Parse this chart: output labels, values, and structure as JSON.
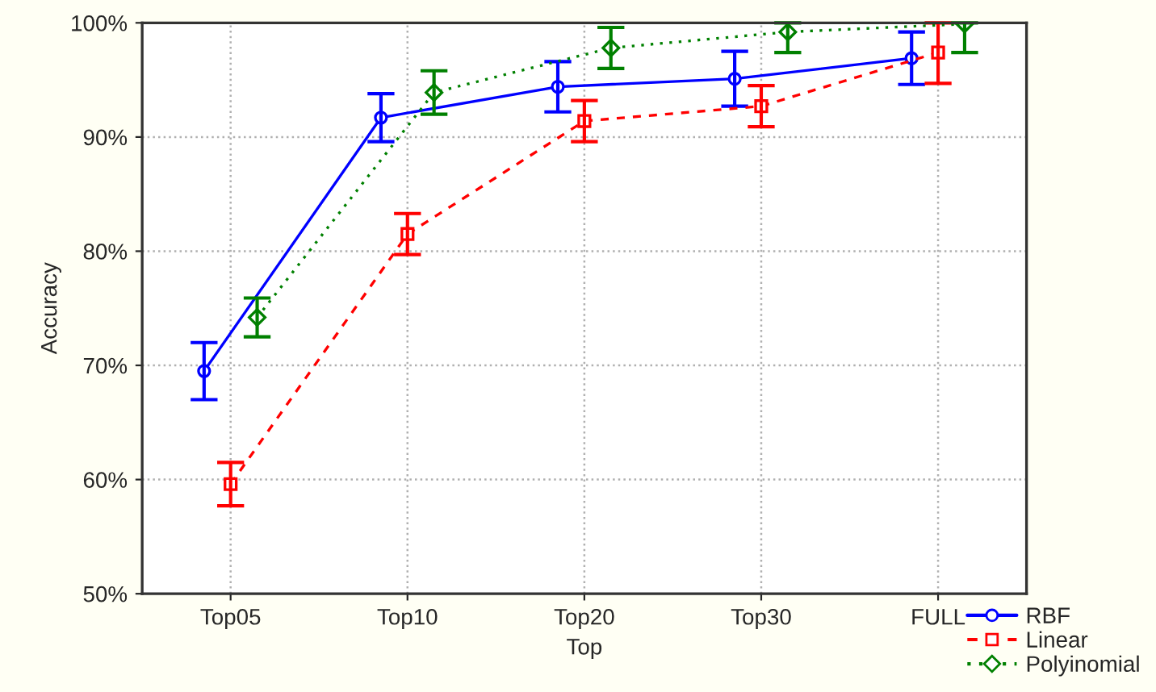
{
  "chart_data": {
    "type": "line",
    "xlabel": "Top",
    "ylabel": "Accuracy",
    "categories": [
      "Top05",
      "Top10",
      "Top20",
      "Top30",
      "FULL"
    ],
    "ylim": [
      50,
      100
    ],
    "yticks": [
      {
        "value": 50,
        "label": "50%"
      },
      {
        "value": 60,
        "label": "60%"
      },
      {
        "value": 70,
        "label": "70%"
      },
      {
        "value": 80,
        "label": "80%"
      },
      {
        "value": 90,
        "label": "90%"
      },
      {
        "value": 100,
        "label": "100%"
      }
    ],
    "grid": true,
    "legend": "bottom right",
    "series": [
      {
        "name": "RBF",
        "color": "#0000ff",
        "marker": "circle",
        "line_style": "solid",
        "values": [
          69.5,
          91.7,
          94.4,
          95.1,
          96.9
        ],
        "errors": [
          2.5,
          2.1,
          2.2,
          2.4,
          2.3
        ]
      },
      {
        "name": "Linear",
        "color": "#ff0000",
        "marker": "square",
        "line_style": "dashed",
        "values": [
          59.6,
          81.5,
          91.4,
          92.7,
          97.4
        ],
        "errors": [
          1.9,
          1.8,
          1.8,
          1.8,
          [
            94.7,
            100
          ]
        ]
      },
      {
        "name": "Polyinomial",
        "color": "#008000",
        "marker": "diamond",
        "line_style": "dotted",
        "values": [
          74.2,
          93.9,
          97.8,
          99.2,
          99.9
        ],
        "errors": [
          1.7,
          1.9,
          1.8,
          [
            97.4,
            100
          ],
          [
            97.4,
            100
          ]
        ]
      }
    ]
  }
}
